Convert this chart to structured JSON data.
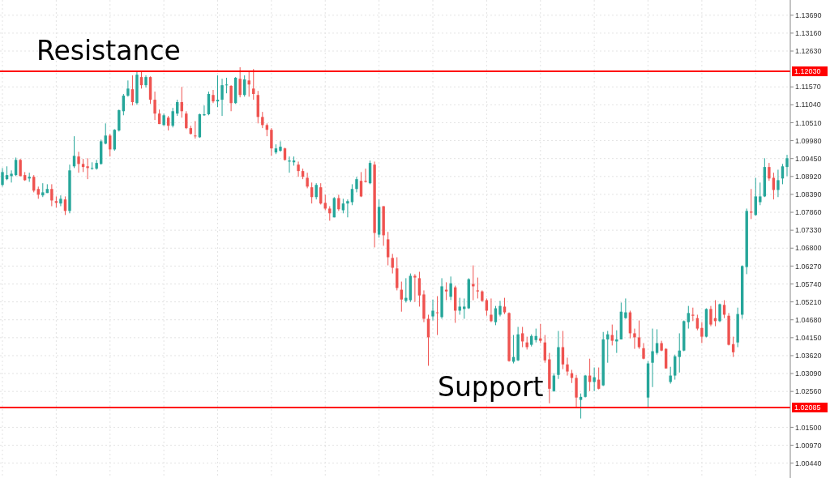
{
  "chart_data": {
    "type": "candlestick",
    "colors": [
      "#26a69a",
      "#26a69a",
      "#26a69a",
      "#26a69a",
      "#ef5350",
      "#ef5350",
      "#26a69a",
      "#ef5350",
      "#ef5350",
      "#26a69a",
      "#26a69a",
      "#ef5350",
      "#ef5350",
      "#26a69a",
      "#ef5350",
      "#26a69a",
      "#26a69a",
      "#ef5350",
      "#ef5350",
      "#ef5350",
      "#26a69a",
      "#26a69a",
      "#26a69a",
      "#26a69a",
      "#ef5350",
      "#26a69a",
      "#26a69a",
      "#26a69a",
      "#26a69a",
      "#ef5350",
      "#26a69a",
      "#ef5350",
      "#26a69a",
      "#ef5350",
      "#ef5350",
      "#ef5350",
      "#26a69a",
      "#ef5350",
      "#26a69a",
      "#26a69a",
      "#ef5350",
      "#ef5350",
      "#ef5350",
      "#ef5350",
      "#26a69a",
      "#26a69a",
      "#26a69a",
      "#ef5350",
      "#26a69a",
      "#26a69a",
      "#26a69a",
      "#ef5350",
      "#26a69a",
      "#ef5350",
      "#26a69a",
      "#ef5350",
      "#ef5350",
      "#ef5350",
      "#ef5350",
      "#ef5350",
      "#ef5350",
      "#26a69a",
      "#26a69a",
      "#ef5350",
      "#26a69a",
      "#26a69a",
      "#ef5350",
      "#ef5350",
      "#ef5350",
      "#ef5350",
      "#26a69a",
      "#ef5350",
      "#ef5350",
      "#ef5350",
      "#26a69a",
      "#ef5350",
      "#26a69a",
      "#26a69a",
      "#26a69a",
      "#26a69a",
      "#ef5350",
      "#ef5350",
      "#26a69a",
      "#ef5350",
      "#26a69a",
      "#ef5350",
      "#ef5350",
      "#ef5350",
      "#ef5350",
      "#ef5350",
      "#26a69a",
      "#26a69a",
      "#ef5350",
      "#ef5350",
      "#ef5350",
      "#ef5350",
      "#26a69a",
      "#ef5350",
      "#26a69a",
      "#ef5350",
      "#26a69a",
      "#ef5350",
      "#26a69a",
      "#26a69a",
      "#26a69a",
      "#ef5350",
      "#ef5350",
      "#ef5350",
      "#ef5350",
      "#ef5350",
      "#26a69a",
      "#26a69a",
      "#ef5350",
      "#ef5350",
      "#26a69a",
      "#26a69a",
      "#ef5350",
      "#ef5350",
      "#26a69a",
      "#26a69a",
      "#ef5350",
      "#ef5350",
      "#ef5350",
      "#26a69a",
      "#26a69a",
      "#ef5350",
      "#ef5350",
      "#ef5350",
      "#ef5350",
      "#26a69a",
      "#26a69a",
      "#ef5350",
      "#26a69a",
      "#ef5350",
      "#26a69a",
      "#26a69a",
      "#ef5350",
      "#26a69a",
      "#26a69a",
      "#26a69a",
      "#ef5350",
      "#ef5350",
      "#ef5350",
      "#ef5350",
      "#26a69a",
      "#26a69a",
      "#26a69a",
      "#ef5350",
      "#ef5350",
      "#26a69a",
      "#26a69a",
      "#26a69a",
      "#26a69a",
      "#26a69a",
      "#ef5350",
      "#ef5350",
      "#ef5350",
      "#26a69a",
      "#ef5350",
      "#ef5350",
      "#26a69a",
      "#ef5350",
      "#ef5350",
      "#ef5350",
      "#26a69a",
      "#26a69a",
      "#26a69a",
      "#ef5350",
      "#26a69a",
      "#26a69a",
      "#26a69a",
      "#ef5350",
      "#ef5350",
      "#26a69a",
      "#26a69a",
      "#26a69a"
    ],
    "grid": true,
    "ylim": [
      1.0,
      1.1414
    ],
    "yticks": [
      {
        "value": 1.0044,
        "label": "1.00440"
      },
      {
        "value": 1.0097,
        "label": "1.00970"
      },
      {
        "value": 1.015,
        "label": "1.01500"
      },
      {
        "value": 1.0256,
        "label": "1.02560"
      },
      {
        "value": 1.0309,
        "label": "1.03090"
      },
      {
        "value": 1.0362,
        "label": "1.03620"
      },
      {
        "value": 1.0415,
        "label": "1.04150"
      },
      {
        "value": 1.0468,
        "label": "1.04680"
      },
      {
        "value": 1.0521,
        "label": "1.05210"
      },
      {
        "value": 1.0574,
        "label": "1.05740"
      },
      {
        "value": 1.0627,
        "label": "1.06270"
      },
      {
        "value": 1.068,
        "label": "1.06800"
      },
      {
        "value": 1.0733,
        "label": "1.07330"
      },
      {
        "value": 1.0786,
        "label": "1.07860"
      },
      {
        "value": 1.0839,
        "label": "1.08390"
      },
      {
        "value": 1.0892,
        "label": "1.08920"
      },
      {
        "value": 1.0945,
        "label": "1.09450"
      },
      {
        "value": 1.0998,
        "label": "1.09980"
      },
      {
        "value": 1.1051,
        "label": "1.10510"
      },
      {
        "value": 1.1104,
        "label": "1.11040"
      },
      {
        "value": 1.1157,
        "label": "1.11570"
      },
      {
        "value": 1.1263,
        "label": "1.12630"
      },
      {
        "value": 1.1316,
        "label": "1.13160"
      },
      {
        "value": 1.1369,
        "label": "1.13690"
      }
    ],
    "ref_lines": [
      {
        "axis": "y",
        "value": 1.1203,
        "label": "1.12030",
        "color": "#ff0000"
      },
      {
        "axis": "y",
        "value": 1.02085,
        "label": "1.02085",
        "color": "#ff0000"
      }
    ],
    "annotations": [
      {
        "text": "Resistance",
        "y": 1.1203
      },
      {
        "text": "Support",
        "y": 1.02085
      }
    ],
    "categories": [
      null,
      null,
      null,
      null,
      null,
      null,
      null,
      null,
      null,
      null,
      null,
      null,
      null,
      null,
      null,
      null,
      null,
      null,
      null,
      null,
      null,
      null,
      null,
      null,
      null,
      null,
      null,
      null,
      null,
      null,
      null,
      null,
      null,
      null,
      null,
      null,
      null,
      null,
      null,
      null,
      null,
      null,
      null,
      null,
      null,
      null,
      null,
      null,
      null,
      null,
      null,
      null,
      null,
      null,
      null,
      null,
      null,
      null,
      null,
      null,
      null,
      null,
      null,
      null,
      null,
      null,
      null,
      null,
      null,
      null,
      null,
      null,
      null,
      null,
      null,
      null,
      null,
      null,
      null,
      null,
      null,
      null,
      null,
      null,
      null,
      null,
      null,
      null,
      null,
      null,
      null,
      null,
      null,
      null,
      null,
      null,
      null,
      null,
      null,
      null,
      null,
      null,
      null,
      null,
      null,
      null,
      null,
      null,
      null,
      null,
      null,
      null,
      null,
      null,
      null,
      null,
      null,
      null,
      null,
      null,
      null,
      null,
      null,
      null,
      null,
      null,
      null,
      null,
      null,
      null,
      null,
      null,
      null,
      null,
      null,
      null,
      null,
      null,
      null,
      null,
      null,
      null,
      null,
      null,
      null,
      null,
      null,
      null,
      null,
      null,
      null,
      null,
      null,
      null,
      null,
      null,
      null,
      null,
      null,
      null,
      null,
      null,
      null,
      null,
      null,
      null,
      null,
      null,
      null,
      null,
      null,
      null,
      null,
      null,
      null,
      null
    ],
    "ohlc": [
      [
        1.0867,
        1.0917,
        1.0862,
        1.0905
      ],
      [
        1.0884,
        1.0922,
        1.0881,
        1.0896
      ],
      [
        1.0893,
        1.091,
        1.0874,
        1.09
      ],
      [
        1.0896,
        1.0948,
        1.0893,
        1.0941
      ],
      [
        1.0941,
        1.0944,
        1.0893,
        1.0893
      ],
      [
        1.0896,
        1.0905,
        1.0879,
        1.0881
      ],
      [
        1.0886,
        1.0903,
        1.0876,
        1.0891
      ],
      [
        1.0891,
        1.0896,
        1.0845,
        1.085
      ],
      [
        1.0855,
        1.0862,
        1.0826,
        1.0838
      ],
      [
        1.0836,
        1.0872,
        1.0831,
        1.0845
      ],
      [
        1.0843,
        1.0869,
        1.0843,
        1.0855
      ],
      [
        1.0855,
        1.0869,
        1.0804,
        1.0821
      ],
      [
        1.0819,
        1.0833,
        1.08,
        1.0814
      ],
      [
        1.0812,
        1.0836,
        1.0804,
        1.0826
      ],
      [
        1.0824,
        1.0833,
        1.0778,
        1.079
      ],
      [
        1.079,
        1.0927,
        1.0783,
        1.091
      ],
      [
        1.0922,
        1.1011,
        1.0917,
        1.0953
      ],
      [
        1.0951,
        1.0965,
        1.0903,
        1.0929
      ],
      [
        1.0929,
        1.0944,
        1.0905,
        1.092
      ],
      [
        1.0922,
        1.0946,
        1.0884,
        1.0917
      ],
      [
        1.0915,
        1.0934,
        1.0912,
        1.0917
      ],
      [
        1.0915,
        1.0941,
        1.0912,
        1.0932
      ],
      [
        1.0929,
        1.1001,
        1.0927,
        1.0996
      ],
      [
        1.0989,
        1.1049,
        1.0987,
        1.1013
      ],
      [
        1.1013,
        1.1018,
        1.0951,
        1.0972
      ],
      [
        1.0972,
        1.1032,
        1.0968,
        1.103
      ],
      [
        1.1028,
        1.109,
        1.1025,
        1.1088
      ],
      [
        1.1085,
        1.1136,
        1.1073,
        1.1131
      ],
      [
        1.1131,
        1.1176,
        1.1128,
        1.1152
      ],
      [
        1.115,
        1.1191,
        1.1102,
        1.1112
      ],
      [
        1.1109,
        1.1205,
        1.1104,
        1.1193
      ],
      [
        1.1186,
        1.1203,
        1.1152,
        1.1162
      ],
      [
        1.1162,
        1.1191,
        1.1155,
        1.1186
      ],
      [
        1.1186,
        1.1188,
        1.1107,
        1.1119
      ],
      [
        1.1119,
        1.1143,
        1.1059,
        1.1078
      ],
      [
        1.1078,
        1.109,
        1.1047,
        1.1047
      ],
      [
        1.1044,
        1.1078,
        1.1042,
        1.1073
      ],
      [
        1.1066,
        1.1071,
        1.1028,
        1.1042
      ],
      [
        1.1042,
        1.1095,
        1.1037,
        1.1085
      ],
      [
        1.1078,
        1.1119,
        1.1071,
        1.1112
      ],
      [
        1.1112,
        1.1157,
        1.1066,
        1.1085
      ],
      [
        1.1078,
        1.1085,
        1.1032,
        1.1035
      ],
      [
        1.1035,
        1.1042,
        1.1016,
        1.1018
      ],
      [
        1.1013,
        1.1056,
        1.1004,
        1.1011
      ],
      [
        1.1008,
        1.1078,
        1.1006,
        1.1076
      ],
      [
        1.1073,
        1.1102,
        1.1071,
        1.1076
      ],
      [
        1.1076,
        1.1143,
        1.1073,
        1.1136
      ],
      [
        1.1133,
        1.1148,
        1.1109,
        1.1114
      ],
      [
        1.1114,
        1.1191,
        1.1097,
        1.1119
      ],
      [
        1.1119,
        1.1181,
        1.1071,
        1.1162
      ],
      [
        1.1162,
        1.1184,
        1.1138,
        1.1164
      ],
      [
        1.116,
        1.1162,
        1.1085,
        1.1109
      ],
      [
        1.1109,
        1.1186,
        1.1107,
        1.1184
      ],
      [
        1.1181,
        1.1215,
        1.1126,
        1.1133
      ],
      [
        1.1133,
        1.1191,
        1.1128,
        1.1179
      ],
      [
        1.1176,
        1.1205,
        1.1128,
        1.1164
      ],
      [
        1.1152,
        1.121,
        1.1119,
        1.1136
      ],
      [
        1.1133,
        1.1145,
        1.1049,
        1.1068
      ],
      [
        1.1068,
        1.1083,
        1.1035,
        1.1044
      ],
      [
        1.1044,
        1.1049,
        1.1011,
        1.103
      ],
      [
        1.103,
        1.1035,
        1.0953,
        1.0975
      ],
      [
        1.0963,
        1.0987,
        1.0958,
        1.0975
      ],
      [
        1.0968,
        1.0996,
        1.0965,
        1.098
      ],
      [
        1.0975,
        1.0977,
        1.0939,
        1.0941
      ],
      [
        1.0936,
        1.0951,
        1.0903,
        1.0939
      ],
      [
        1.0934,
        1.0951,
        1.0924,
        1.0939
      ],
      [
        1.0927,
        1.0936,
        1.0891,
        1.0908
      ],
      [
        1.0908,
        1.0915,
        1.0884,
        1.0891
      ],
      [
        1.0888,
        1.0903,
        1.0857,
        1.0862
      ],
      [
        1.086,
        1.0874,
        1.0812,
        1.0831
      ],
      [
        1.0831,
        1.0872,
        1.0824,
        1.0867
      ],
      [
        1.086,
        1.0872,
        1.0809,
        1.0812
      ],
      [
        1.0814,
        1.0838,
        1.0792,
        1.0797
      ],
      [
        1.0797,
        1.0804,
        1.0761,
        1.0783
      ],
      [
        1.0771,
        1.0831,
        1.0771,
        1.0828
      ],
      [
        1.0828,
        1.0838,
        1.079,
        1.0795
      ],
      [
        1.0792,
        1.0826,
        1.0783,
        1.0812
      ],
      [
        1.0812,
        1.0824,
        1.0771,
        1.0819
      ],
      [
        1.0816,
        1.0869,
        1.0807,
        1.0855
      ],
      [
        1.0855,
        1.0891,
        1.0845,
        1.0884
      ],
      [
        1.0879,
        1.0905,
        1.0831,
        1.0833
      ],
      [
        1.0879,
        1.0915,
        1.0874,
        1.0876
      ],
      [
        1.0872,
        1.0939,
        1.0869,
        1.0932
      ],
      [
        1.0927,
        1.0936,
        1.0682,
        1.0725
      ],
      [
        1.072,
        1.0824,
        1.0711,
        1.0802
      ],
      [
        1.0804,
        1.0804,
        1.0687,
        1.0718
      ],
      [
        1.0706,
        1.0728,
        1.0629,
        1.0653
      ],
      [
        1.0651,
        1.0663,
        1.0605,
        1.0622
      ],
      [
        1.062,
        1.0653,
        1.0555,
        1.0562
      ],
      [
        1.0557,
        1.0581,
        1.0492,
        1.0528
      ],
      [
        1.0524,
        1.0591,
        1.0519,
        1.0533
      ],
      [
        1.0526,
        1.0605,
        1.0521,
        1.0598
      ],
      [
        1.0598,
        1.0603,
        1.0521,
        1.0593
      ],
      [
        1.0591,
        1.061,
        1.0507,
        1.054
      ],
      [
        1.0543,
        1.0555,
        1.0461,
        1.0471
      ],
      [
        1.0471,
        1.0483,
        1.0332,
        1.0416
      ],
      [
        1.0478,
        1.0528,
        1.0466,
        1.0495
      ],
      [
        1.049,
        1.0538,
        1.0423,
        1.0488
      ],
      [
        1.0476,
        1.0591,
        1.0471,
        1.0567
      ],
      [
        1.0557,
        1.0579,
        1.0526,
        1.0552
      ],
      [
        1.0536,
        1.0596,
        1.0526,
        1.0576
      ],
      [
        1.0564,
        1.0569,
        1.0459,
        1.0495
      ],
      [
        1.0495,
        1.0533,
        1.0483,
        1.0507
      ],
      [
        1.05,
        1.0531,
        1.0471,
        1.0507
      ],
      [
        1.0502,
        1.0591,
        1.05,
        1.0588
      ],
      [
        1.0574,
        1.0629,
        1.0526,
        1.0567
      ],
      [
        1.0555,
        1.0593,
        1.0531,
        1.0552
      ],
      [
        1.0552,
        1.0555,
        1.0521,
        1.0524
      ],
      [
        1.0526,
        1.0531,
        1.048,
        1.0495
      ],
      [
        1.0483,
        1.0531,
        1.0461,
        1.0464
      ],
      [
        1.0461,
        1.0509,
        1.0452,
        1.0502
      ],
      [
        1.0483,
        1.0524,
        1.0478,
        1.0509
      ],
      [
        1.0507,
        1.0533,
        1.0485,
        1.049
      ],
      [
        1.0488,
        1.049,
        1.0344,
        1.0346
      ],
      [
        1.0344,
        1.0423,
        1.0339,
        1.0358
      ],
      [
        1.0348,
        1.0447,
        1.0346,
        1.0425
      ],
      [
        1.0428,
        1.0447,
        1.0387,
        1.0404
      ],
      [
        1.0401,
        1.0418,
        1.038,
        1.0387
      ],
      [
        1.0394,
        1.0425,
        1.0389,
        1.042
      ],
      [
        1.0408,
        1.0442,
        1.0401,
        1.042
      ],
      [
        1.0413,
        1.0456,
        1.0399,
        1.0406
      ],
      [
        1.0401,
        1.0423,
        1.0341,
        1.0348
      ],
      [
        1.0351,
        1.037,
        1.0221,
        1.0264
      ],
      [
        1.0257,
        1.031,
        1.0255,
        1.0303
      ],
      [
        1.0305,
        1.0435,
        1.0293,
        1.0387
      ],
      [
        1.0387,
        1.0435,
        1.0322,
        1.0336
      ],
      [
        1.0336,
        1.0356,
        1.0303,
        1.0315
      ],
      [
        1.031,
        1.032,
        1.0281,
        1.0296
      ],
      [
        1.0296,
        1.0305,
        1.0207,
        1.0238
      ],
      [
        1.0231,
        1.025,
        1.0176,
        1.024
      ],
      [
        1.024,
        1.0305,
        1.0238,
        1.0303
      ],
      [
        1.0303,
        1.0353,
        1.0257,
        1.0284
      ],
      [
        1.0284,
        1.0327,
        1.0257,
        1.0298
      ],
      [
        1.0291,
        1.0327,
        1.0262,
        1.0264
      ],
      [
        1.0274,
        1.0432,
        1.0272,
        1.041
      ],
      [
        1.041,
        1.0435,
        1.0341,
        1.0425
      ],
      [
        1.0423,
        1.0454,
        1.0392,
        1.0406
      ],
      [
        1.0404,
        1.0437,
        1.037,
        1.041
      ],
      [
        1.041,
        1.0519,
        1.041,
        1.0492
      ],
      [
        1.0473,
        1.0531,
        1.0471,
        1.049
      ],
      [
        1.049,
        1.0495,
        1.0413,
        1.0428
      ],
      [
        1.0428,
        1.0442,
        1.0382,
        1.0416
      ],
      [
        1.0416,
        1.0466,
        1.0382,
        1.0387
      ],
      [
        1.0384,
        1.0399,
        1.0351,
        1.0353
      ],
      [
        1.0238,
        1.0346,
        1.0207,
        1.0339
      ],
      [
        1.0341,
        1.0442,
        1.0269,
        1.0375
      ],
      [
        1.037,
        1.044,
        1.0365,
        1.0399
      ],
      [
        1.0399,
        1.0406,
        1.0375,
        1.0377
      ],
      [
        1.0382,
        1.0384,
        1.0324,
        1.0324
      ],
      [
        1.0284,
        1.0329,
        1.0279,
        1.0303
      ],
      [
        1.0303,
        1.0365,
        1.0291,
        1.036
      ],
      [
        1.0358,
        1.0428,
        1.0312,
        1.0377
      ],
      [
        1.0377,
        1.0466,
        1.0375,
        1.0464
      ],
      [
        1.0461,
        1.0509,
        1.0442,
        1.0488
      ],
      [
        1.0483,
        1.0504,
        1.0464,
        1.048
      ],
      [
        1.0473,
        1.0483,
        1.0437,
        1.0442
      ],
      [
        1.0444,
        1.0461,
        1.0399,
        1.0418
      ],
      [
        1.0418,
        1.0502,
        1.0416,
        1.05
      ],
      [
        1.05,
        1.0509,
        1.0449,
        1.0454
      ],
      [
        1.0473,
        1.0526,
        1.0449,
        1.0464
      ],
      [
        1.0464,
        1.0516,
        1.0461,
        1.0514
      ],
      [
        1.0512,
        1.0526,
        1.0473,
        1.0483
      ],
      [
        1.048,
        1.0488,
        1.0392,
        1.0394
      ],
      [
        1.0396,
        1.0418,
        1.0358,
        1.0372
      ],
      [
        1.0401,
        1.0504,
        1.0387,
        1.0485
      ],
      [
        1.0483,
        1.0629,
        1.0471,
        1.0627
      ],
      [
        1.0624,
        1.0797,
        1.0603,
        1.079
      ],
      [
        1.0788,
        1.0855,
        1.0766,
        1.0785
      ],
      [
        1.0778,
        1.0888,
        1.0776,
        1.0833
      ],
      [
        1.0816,
        1.0874,
        1.0807,
        1.0833
      ],
      [
        1.0833,
        1.0946,
        1.0831,
        1.092
      ],
      [
        1.092,
        1.0932,
        1.0879,
        1.0886
      ],
      [
        1.0888,
        1.0903,
        1.0824,
        1.0852
      ],
      [
        1.0852,
        1.0912,
        1.0831,
        1.0881
      ],
      [
        1.0886,
        1.0929,
        1.0869,
        1.0922
      ],
      [
        1.092,
        1.0956,
        1.0893,
        1.0946
      ]
    ]
  }
}
